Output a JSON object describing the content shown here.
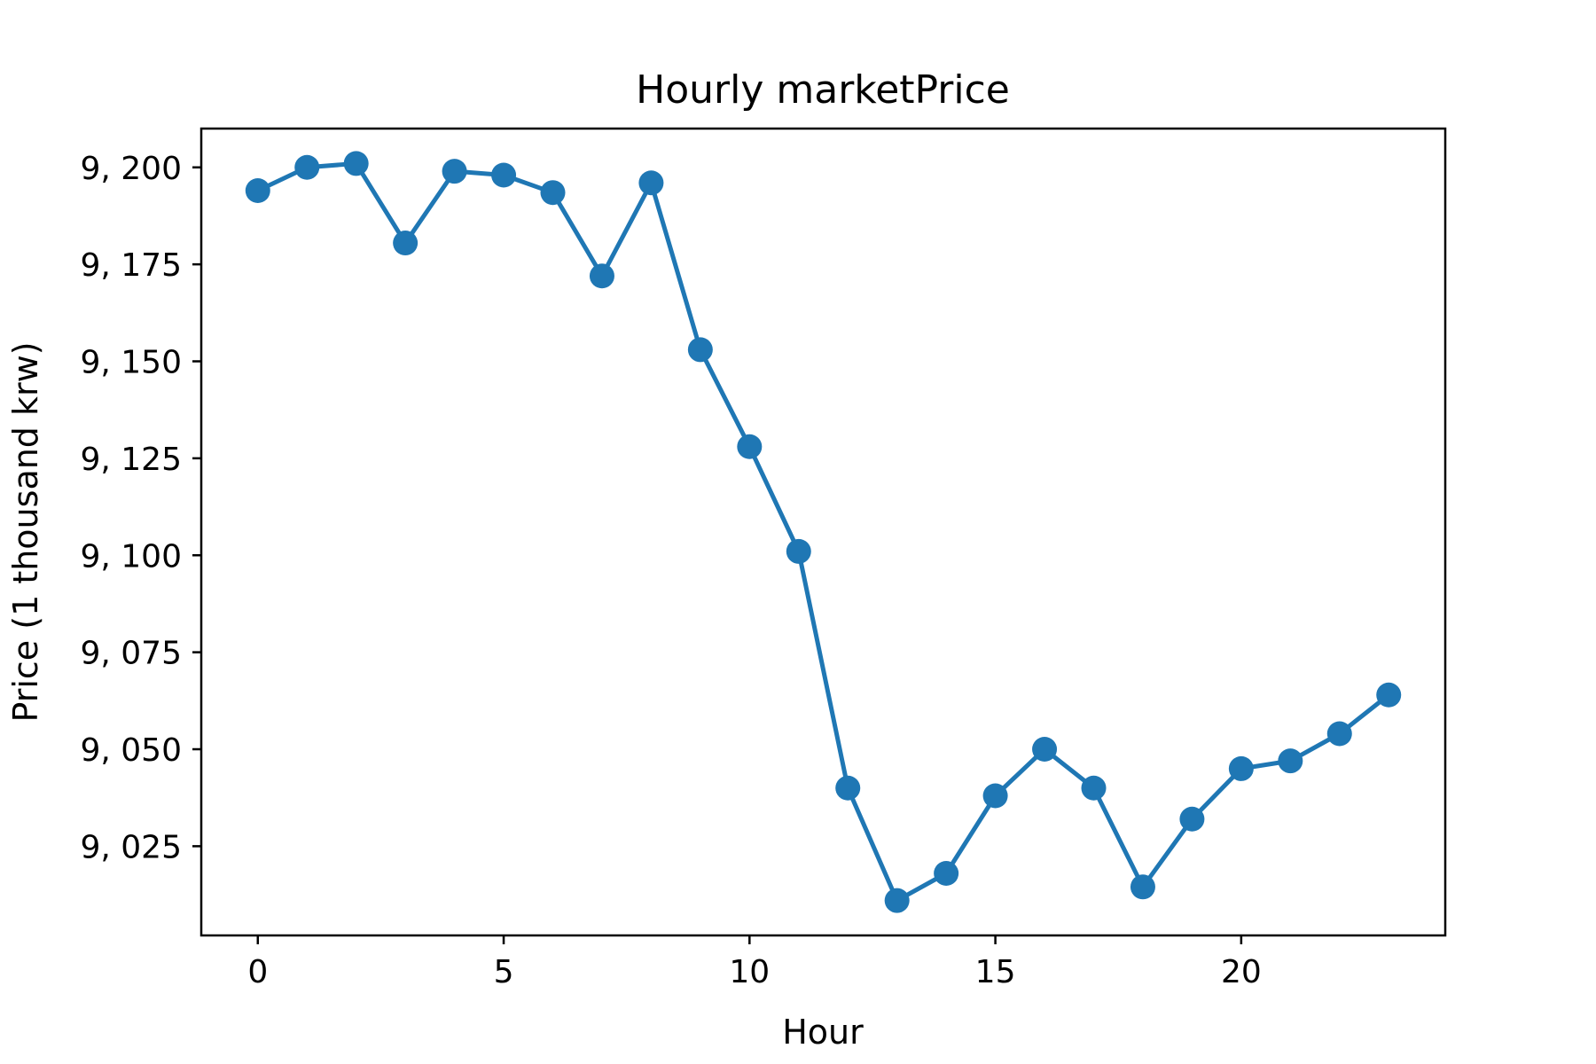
{
  "chart_data": {
    "type": "line",
    "title": "Hourly marketPrice",
    "xlabel": "Hour",
    "ylabel": "Price (1 thousand krw)",
    "x": [
      0,
      1,
      2,
      3,
      4,
      5,
      6,
      7,
      8,
      9,
      10,
      11,
      12,
      13,
      14,
      15,
      16,
      17,
      18,
      19,
      20,
      21,
      22,
      23
    ],
    "series": [
      {
        "values": [
          9194,
          9200,
          9201,
          9180.5,
          9199,
          9198,
          9193.5,
          9172,
          9196,
          9153,
          9128,
          9101,
          9040,
          9011,
          9018,
          9038,
          9050,
          9040,
          9014.5,
          9032,
          9045,
          9047,
          9054,
          9064
        ],
        "color": "#1f77b4"
      }
    ],
    "xlim": [
      -1.15,
      24.15
    ],
    "ylim": [
      9002,
      9210
    ],
    "xticks": [
      0,
      5,
      10,
      15,
      20
    ],
    "xtick_labels": [
      "0",
      "5",
      "10",
      "15",
      "20"
    ],
    "yticks": [
      9025,
      9050,
      9075,
      9100,
      9125,
      9150,
      9175,
      9200
    ],
    "ytick_labels": [
      "9, 025",
      "9, 050",
      "9, 075",
      "9, 100",
      "9, 125",
      "9, 150",
      "9, 175",
      "9, 200"
    ],
    "grid": false,
    "legend": false
  }
}
